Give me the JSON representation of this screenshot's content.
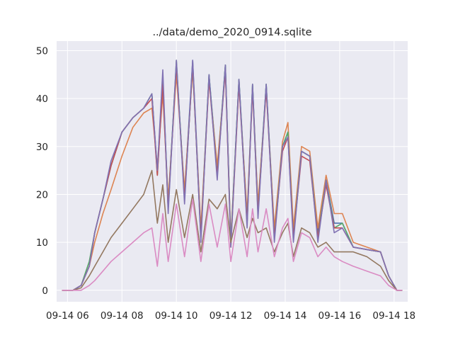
{
  "chart_data": {
    "type": "line",
    "title": "../data/demo_2020_0914.sqlite",
    "xlabel": "",
    "ylabel": "",
    "x_tick_labels": [
      "09-14 06",
      "09-14 08",
      "09-14 10",
      "09-14 12",
      "09-14 14",
      "09-14 16",
      "09-14 18"
    ],
    "x_ticks_hours": [
      6,
      8,
      10,
      12,
      14,
      16,
      18
    ],
    "xlim": [
      5.6,
      18.5
    ],
    "ylim": [
      -2.4,
      52
    ],
    "y_ticks": [
      0,
      10,
      20,
      30,
      40,
      50
    ],
    "grid": true,
    "legend": "none",
    "background": "#eaeaf2",
    "series": [
      {
        "color": "#4c72b0",
        "x": [
          5.8,
          6.2,
          6.5,
          6.8,
          7.0,
          7.3,
          7.6,
          8.0,
          8.4,
          8.8,
          9.1,
          9.3,
          9.5,
          9.7,
          10.0,
          10.3,
          10.6,
          10.9,
          11.2,
          11.5,
          11.8,
          12.0,
          12.3,
          12.6,
          12.8,
          13.0,
          13.3,
          13.6,
          13.9,
          14.1,
          14.3,
          14.6,
          14.9,
          15.2,
          15.5,
          15.8,
          16.1,
          16.5,
          17.0,
          17.5,
          17.8,
          18.1,
          18.3
        ],
        "values": [
          0,
          0,
          1,
          5,
          12,
          19,
          26,
          33,
          36,
          38,
          41,
          25,
          44,
          18,
          47,
          20,
          48,
          12,
          45,
          25,
          47,
          10,
          44,
          15,
          43,
          17,
          43,
          12,
          30,
          33,
          12,
          29,
          28,
          12,
          23,
          14,
          14,
          9,
          8.5,
          8,
          3,
          0,
          0
        ]
      },
      {
        "color": "#dd8452",
        "x": [
          5.8,
          6.2,
          6.5,
          6.8,
          7.0,
          7.3,
          7.6,
          8.0,
          8.4,
          8.8,
          9.1,
          9.3,
          9.5,
          9.7,
          10.0,
          10.3,
          10.6,
          10.9,
          11.2,
          11.5,
          11.8,
          12.0,
          12.3,
          12.6,
          12.8,
          13.0,
          13.3,
          13.6,
          13.9,
          14.1,
          14.3,
          14.6,
          14.9,
          15.2,
          15.5,
          15.8,
          16.1,
          16.5,
          17.0,
          17.5,
          17.8,
          18.1,
          18.3
        ],
        "values": [
          0,
          0,
          1,
          5,
          10,
          16,
          21,
          28,
          34,
          37,
          38,
          26,
          41,
          19,
          45,
          21,
          46,
          13,
          44,
          26,
          46,
          11,
          43,
          16,
          42,
          18,
          42,
          13,
          31,
          35,
          13,
          30,
          29,
          13,
          24,
          16,
          16,
          10,
          9,
          8,
          3,
          0,
          0
        ]
      },
      {
        "color": "#55a868",
        "x": [
          5.8,
          6.2,
          6.5,
          6.8,
          7.0,
          7.3,
          7.6,
          8.0,
          8.4,
          8.8,
          9.1,
          9.3,
          9.5,
          9.7,
          10.0,
          10.3,
          10.6,
          10.9,
          11.2,
          11.5,
          11.8,
          12.0,
          12.3,
          12.6,
          12.8,
          13.0,
          13.3,
          13.6,
          13.9,
          14.1,
          14.3,
          14.6,
          14.9,
          15.2,
          15.5,
          15.8,
          16.1,
          16.5,
          17.0,
          17.5,
          17.8,
          18.1,
          18.3
        ],
        "values": [
          0,
          0,
          1,
          6,
          12,
          19,
          26,
          33,
          36,
          38,
          41,
          24,
          44,
          17,
          48,
          19,
          47,
          11,
          45,
          24,
          47,
          10,
          44,
          14,
          43,
          16,
          43,
          11,
          30,
          33,
          11,
          29,
          28,
          11,
          23,
          13,
          14,
          9,
          8.5,
          8,
          3,
          0,
          0
        ]
      },
      {
        "color": "#c44e52",
        "x": [
          5.8,
          6.2,
          6.5,
          6.8,
          7.0,
          7.3,
          7.6,
          8.0,
          8.4,
          8.8,
          9.1,
          9.3,
          9.5,
          9.7,
          10.0,
          10.3,
          10.6,
          10.9,
          11.2,
          11.5,
          11.8,
          12.0,
          12.3,
          12.6,
          12.8,
          13.0,
          13.3,
          13.6,
          13.9,
          14.1,
          14.3,
          14.6,
          14.9,
          15.2,
          15.5,
          15.8,
          16.1,
          16.5,
          17.0,
          17.5,
          17.8,
          18.1,
          18.3
        ],
        "values": [
          0,
          0,
          1,
          5,
          12,
          19,
          26,
          33,
          36,
          38,
          40,
          24,
          43,
          17,
          47,
          19,
          47,
          11,
          44,
          24,
          46,
          9,
          43,
          14,
          42,
          16,
          42,
          11,
          29,
          32,
          11,
          28,
          27,
          11,
          22,
          13,
          13,
          9,
          8.5,
          8,
          3,
          0,
          0
        ]
      },
      {
        "color": "#8172b3",
        "x": [
          5.8,
          6.2,
          6.5,
          6.8,
          7.0,
          7.3,
          7.6,
          8.0,
          8.4,
          8.8,
          9.1,
          9.3,
          9.5,
          9.7,
          10.0,
          10.3,
          10.6,
          10.9,
          11.2,
          11.5,
          11.8,
          12.0,
          12.3,
          12.6,
          12.8,
          13.0,
          13.3,
          13.6,
          13.9,
          14.1,
          14.3,
          14.6,
          14.9,
          15.2,
          15.5,
          15.8,
          16.1,
          16.5,
          17.0,
          17.5,
          17.8,
          18.1,
          18.3
        ],
        "values": [
          0,
          0,
          1,
          5,
          12,
          19,
          27,
          33,
          36,
          38,
          41,
          25,
          46,
          16,
          48,
          18,
          48,
          10,
          45,
          23,
          47,
          9,
          44,
          13,
          43,
          15,
          43,
          10,
          30,
          32,
          10,
          29,
          28,
          10,
          23,
          12,
          13,
          9,
          8.5,
          8,
          3,
          0,
          0
        ]
      },
      {
        "color": "#937860",
        "x": [
          5.8,
          6.2,
          6.5,
          6.8,
          7.0,
          7.3,
          7.6,
          8.0,
          8.4,
          8.8,
          9.1,
          9.3,
          9.5,
          9.7,
          10.0,
          10.3,
          10.6,
          10.9,
          11.2,
          11.5,
          11.8,
          12.0,
          12.3,
          12.6,
          12.8,
          13.0,
          13.3,
          13.6,
          13.9,
          14.1,
          14.3,
          14.6,
          14.9,
          15.2,
          15.5,
          15.8,
          16.1,
          16.5,
          17.0,
          17.5,
          17.8,
          18.1,
          18.3
        ],
        "values": [
          0,
          0,
          0.5,
          3,
          5,
          8,
          11,
          14,
          17,
          20,
          25,
          14,
          22,
          10,
          21,
          11,
          20,
          8,
          19,
          17,
          20,
          10,
          17,
          11,
          15,
          12,
          13,
          8,
          12,
          14,
          7,
          13,
          12,
          9,
          10,
          8,
          8,
          8,
          7,
          5,
          2,
          0,
          0
        ]
      },
      {
        "color": "#da8bc3",
        "x": [
          5.8,
          6.2,
          6.5,
          6.8,
          7.0,
          7.3,
          7.6,
          8.0,
          8.4,
          8.8,
          9.1,
          9.3,
          9.5,
          9.7,
          10.0,
          10.3,
          10.6,
          10.9,
          11.2,
          11.5,
          11.8,
          12.0,
          12.3,
          12.6,
          12.8,
          13.0,
          13.3,
          13.6,
          13.9,
          14.1,
          14.3,
          14.6,
          14.9,
          15.2,
          15.5,
          15.8,
          16.1,
          16.5,
          17.0,
          17.5,
          17.8,
          18.1,
          18.3
        ],
        "values": [
          0,
          0,
          0,
          1,
          2,
          4,
          6,
          8,
          10,
          12,
          13,
          5,
          16,
          6,
          18,
          7,
          19,
          6,
          18,
          9,
          18,
          6,
          17,
          7,
          17,
          8,
          17,
          7,
          13,
          15,
          6,
          12,
          11,
          7,
          9,
          7,
          6,
          5,
          4,
          3,
          1,
          0,
          0
        ]
      }
    ]
  }
}
